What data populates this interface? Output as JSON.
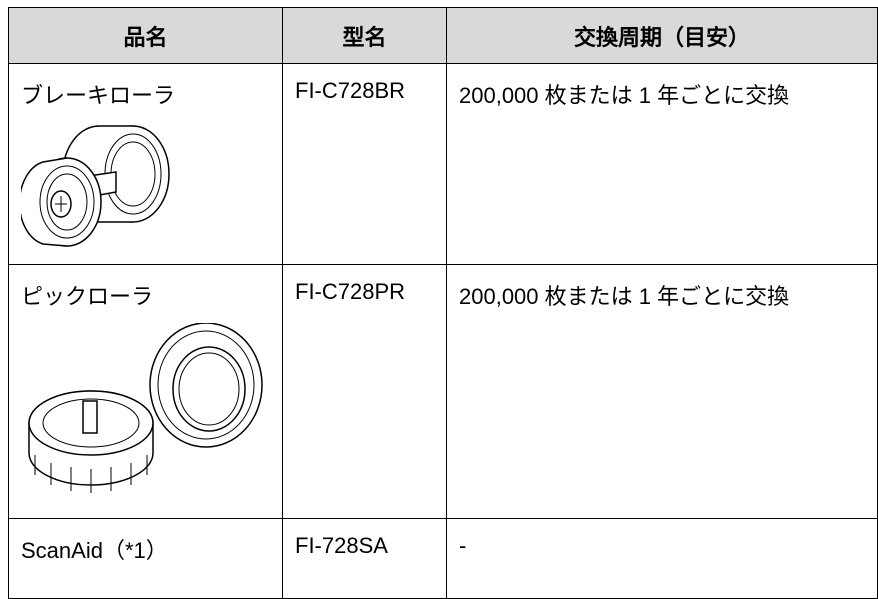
{
  "table": {
    "headers": [
      "品名",
      "型名",
      "交換周期（目安）"
    ],
    "rows": [
      [
        "ブレーキローラ",
        "FI-C728BR",
        "200,000 枚または 1 年ごとに交換"
      ],
      [
        "ピックローラ",
        "FI-C728PR",
        "200,000 枚または 1 年ごとに交換"
      ],
      [
        "ScanAid（*1）",
        "FI-728SA",
        "-"
      ]
    ]
  }
}
